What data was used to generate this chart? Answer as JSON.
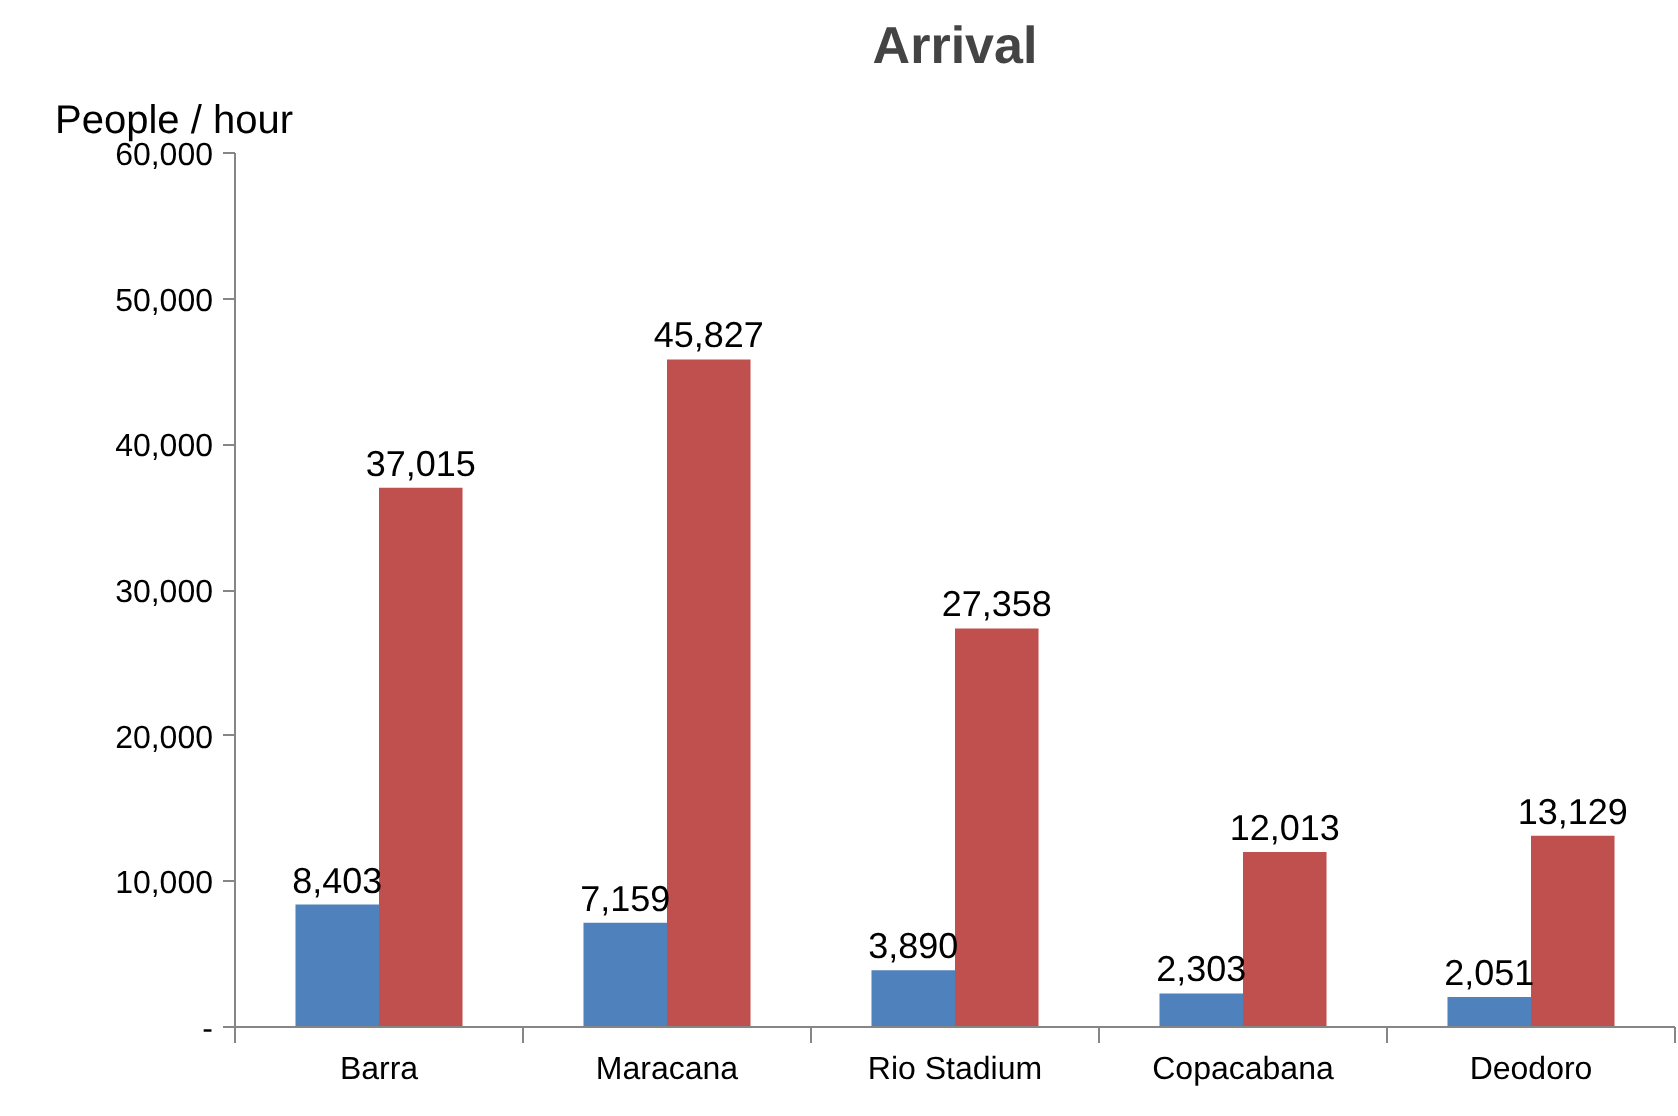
{
  "chart_data": {
    "type": "bar",
    "title": "Arrival",
    "ylabel": "People / hour",
    "categories": [
      "Barra",
      "Maracana",
      "Rio Stadium",
      "Copacabana",
      "Deodoro"
    ],
    "series": [
      {
        "color": "#4f81bd",
        "values": [
          8403,
          7159,
          3890,
          2303,
          2051
        ],
        "value_labels": [
          "8,403",
          "7,159",
          "3,890",
          "2,303",
          "2,051"
        ]
      },
      {
        "color": "#c0504d",
        "values": [
          37015,
          45827,
          27358,
          12013,
          13129
        ],
        "value_labels": [
          "37,015",
          "45,827",
          "27,358",
          "12,013",
          "13,129"
        ]
      }
    ],
    "ylim": [
      0,
      60000
    ],
    "yticks": [
      {
        "value": 0,
        "label": "-"
      },
      {
        "value": 10000,
        "label": "10,000"
      },
      {
        "value": 20000,
        "label": "20,000"
      },
      {
        "value": 30000,
        "label": "30,000"
      },
      {
        "value": 40000,
        "label": "40,000"
      },
      {
        "value": 50000,
        "label": "50,000"
      },
      {
        "value": 60000,
        "label": "60,000"
      }
    ],
    "grid": false
  }
}
